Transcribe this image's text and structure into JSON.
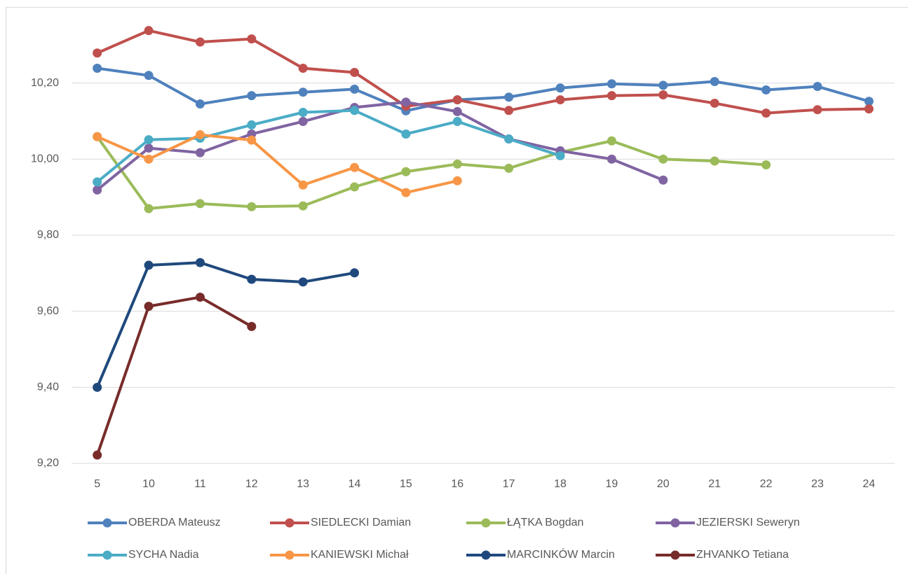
{
  "chart_data": {
    "type": "line",
    "categories": [
      "5",
      "10",
      "11",
      "12",
      "13",
      "14",
      "15",
      "16",
      "17",
      "18",
      "19",
      "20",
      "21",
      "22",
      "23",
      "24"
    ],
    "ylim": [
      9.2,
      10.4
    ],
    "yticks": [
      {
        "value": 9.2,
        "label": "9,20"
      },
      {
        "value": 9.4,
        "label": "9,40"
      },
      {
        "value": 9.6,
        "label": "9,60"
      },
      {
        "value": 9.8,
        "label": "9,80"
      },
      {
        "value": 10.0,
        "label": "10,00"
      },
      {
        "value": 10.2,
        "label": "10,20"
      }
    ],
    "grid": true,
    "legend": "bottom",
    "series": [
      {
        "name": "OBERDA Mateusz",
        "color": "#4f81bd",
        "values": [
          10.239,
          10.22,
          10.145,
          10.167,
          10.176,
          10.184,
          10.127,
          10.156,
          10.163,
          10.187,
          10.198,
          10.194,
          10.204,
          10.182,
          10.191,
          10.152
        ]
      },
      {
        "name": "SIEDLECKI Damian",
        "color": "#c0504d",
        "values": [
          10.279,
          10.338,
          10.308,
          10.316,
          10.239,
          10.228,
          10.139,
          10.156,
          10.128,
          10.156,
          10.167,
          10.169,
          10.147,
          10.121,
          10.13,
          10.132
        ]
      },
      {
        "name": "ŁĄTKA Bogdan",
        "color": "#9bbb59",
        "values": [
          10.059,
          9.87,
          9.883,
          9.875,
          9.877,
          9.927,
          9.967,
          9.987,
          9.976,
          10.018,
          10.048,
          10.0,
          9.995,
          9.985,
          null,
          null
        ]
      },
      {
        "name": "JEZIERSKI Seweryn",
        "color": "#8064a2",
        "values": [
          9.919,
          10.029,
          10.017,
          10.066,
          10.099,
          10.136,
          10.15,
          10.125,
          10.053,
          10.022,
          10.0,
          9.945,
          null,
          null,
          null,
          null
        ]
      },
      {
        "name": "SYCHA Nadia",
        "color": "#4bacc6",
        "values": [
          9.94,
          10.051,
          10.055,
          10.09,
          10.123,
          10.128,
          10.066,
          10.099,
          10.053,
          10.009,
          null,
          null,
          null,
          null,
          null,
          null
        ]
      },
      {
        "name": "KANIEWSKI Michał",
        "color": "#f79646",
        "values": [
          10.059,
          10.0,
          10.064,
          10.05,
          9.932,
          9.978,
          9.912,
          9.943,
          null,
          null,
          null,
          null,
          null,
          null,
          null,
          null
        ]
      },
      {
        "name": "MARCINKÓW Marcin",
        "color": "#1f497d",
        "values": [
          9.4,
          9.721,
          9.728,
          9.684,
          9.677,
          9.701,
          null,
          null,
          null,
          null,
          null,
          null,
          null,
          null,
          null,
          null
        ]
      },
      {
        "name": "ZHVANKO Tetiana",
        "color": "#772c2a",
        "values": [
          9.222,
          9.613,
          9.637,
          9.56,
          null,
          null,
          null,
          null,
          null,
          null,
          null,
          null,
          null,
          null,
          null,
          null
        ]
      }
    ]
  }
}
